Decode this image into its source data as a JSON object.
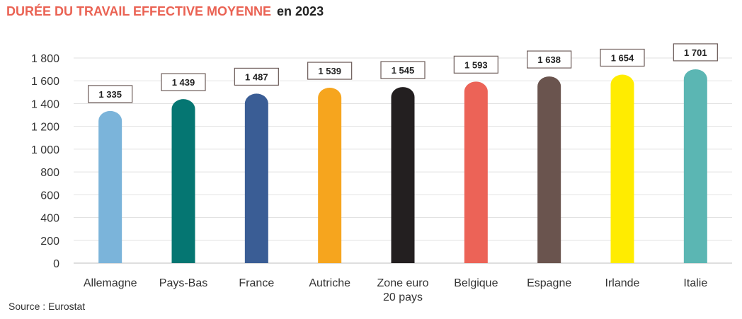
{
  "title": {
    "main": "DURÉE DU TRAVAIL EFFECTIVE MOYENNE",
    "year": "en 2023"
  },
  "source": "Source : Eurostat",
  "chart_data": {
    "type": "bar",
    "title": "DURÉE DU TRAVAIL EFFECTIVE MOYENNE en 2023",
    "xlabel": "",
    "ylabel": "",
    "ylim": [
      0,
      1800
    ],
    "yticks": [
      0,
      200,
      400,
      600,
      800,
      1000,
      1200,
      1400,
      1600,
      1800
    ],
    "ytick_labels": [
      "0",
      "200",
      "400",
      "600",
      "800",
      "1 000",
      "1 200",
      "1 400",
      "1 600",
      "1 800"
    ],
    "grid": "horizontal",
    "legend": "none",
    "categories": [
      [
        "Allemagne"
      ],
      [
        "Pays-Bas"
      ],
      [
        "France"
      ],
      [
        "Autriche"
      ],
      [
        "Zone euro",
        "20 pays"
      ],
      [
        "Belgique"
      ],
      [
        "Espagne"
      ],
      [
        "Irlande"
      ],
      [
        "Italie"
      ]
    ],
    "values": [
      1335,
      1439,
      1487,
      1539,
      1545,
      1593,
      1638,
      1654,
      1701
    ],
    "value_labels": [
      "1 335",
      "1 439",
      "1 487",
      "1 539",
      "1 545",
      "1 593",
      "1 638",
      "1 654",
      "1 701"
    ],
    "colors": [
      "#7BB4DA",
      "#057672",
      "#3A5D95",
      "#F6A51E",
      "#231F20",
      "#EC6357",
      "#6A544E",
      "#FFEC00",
      "#5BB6B3"
    ]
  }
}
